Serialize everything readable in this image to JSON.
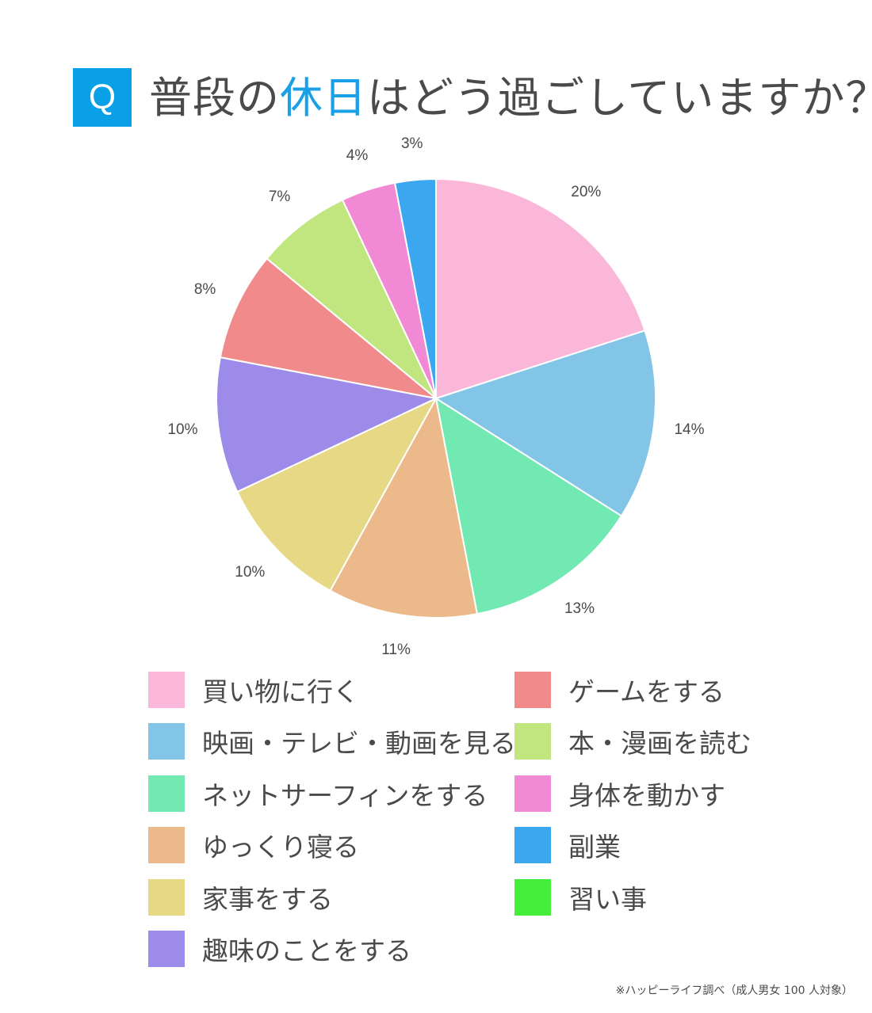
{
  "title": {
    "q_label": "Q",
    "prefix": "普段の",
    "highlight": "休日",
    "suffix": "はどう過ごしていますか？",
    "highlight_color": "#1aa0e6",
    "q_box_color": "#0aa0e8"
  },
  "chart_data": {
    "type": "pie",
    "title": "普段の休日はどう過ごしていますか？",
    "start_angle": "12 o'clock, clockwise",
    "legend_position": "bottom, two columns",
    "categories": [
      "買い物に行く",
      "映画・テレビ・動画を見る",
      "ネットサーフィンをする",
      "ゆっくり寝る",
      "家事をする",
      "趣味のことをする",
      "ゲームをする",
      "本・漫画を読む",
      "身体を動かす",
      "副業",
      "習い事"
    ],
    "values": [
      20,
      14,
      13,
      11,
      10,
      10,
      8,
      7,
      4,
      3,
      0
    ],
    "labels": [
      "20%",
      "14%",
      "13%",
      "11%",
      "10%",
      "10%",
      "8%",
      "7%",
      "4%",
      "3%",
      ""
    ],
    "colors": [
      "#fbb7d9",
      "#82c5e6",
      "#72e8b3",
      "#ecb98a",
      "#e6d885",
      "#9d8bea",
      "#f08a8b",
      "#c1e680",
      "#f289d5",
      "#3aa7ee",
      "#44ee3a"
    ],
    "unit": "%"
  },
  "legend": {
    "left": [
      {
        "label": "買い物に行く",
        "color": "#fbb7d9"
      },
      {
        "label": "映画・テレビ・動画を見る",
        "color": "#82c5e6"
      },
      {
        "label": "ネットサーフィンをする",
        "color": "#72e8b3"
      },
      {
        "label": "ゆっくり寝る",
        "color": "#ecb98a"
      },
      {
        "label": "家事をする",
        "color": "#e6d885"
      },
      {
        "label": "趣味のことをする",
        "color": "#9d8bea"
      }
    ],
    "right": [
      {
        "label": "ゲームをする",
        "color": "#f08a8b"
      },
      {
        "label": "本・漫画を読む",
        "color": "#c1e680"
      },
      {
        "label": "身体を動かす",
        "color": "#f289d5"
      },
      {
        "label": "副業",
        "color": "#3aa7ee"
      },
      {
        "label": "習い事",
        "color": "#44ee3a"
      }
    ]
  },
  "footnote": "※ハッピーライフ調べ（成人男女 100 人対象）"
}
